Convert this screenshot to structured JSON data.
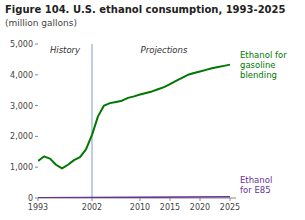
{
  "chart_data": {
    "type": "line",
    "title": "Figure 104. U.S. ethanol consumption, 1993-2025",
    "subtitle": "(million gallons)",
    "annotations": [
      "History",
      "Projections"
    ],
    "divider": 2002,
    "xlim": [
      1993,
      2026
    ],
    "xticks": [
      1993,
      2002,
      2010,
      2015,
      2020,
      2025
    ],
    "ylim": [
      0,
      5000
    ],
    "yticks": [
      0,
      {
        "value": 1000,
        "label": "1,000"
      },
      {
        "value": 2000,
        "label": "2,000"
      },
      {
        "value": 3000,
        "label": "3,000"
      },
      {
        "value": 4000,
        "label": "4,000"
      },
      {
        "value": 5000,
        "label": "5,000"
      }
    ],
    "grid": false,
    "series": [
      {
        "name": "Ethanol for\ngasoline\nblending",
        "color": "#007700",
        "x": [
          1993,
          1994,
          1995,
          1996,
          1997,
          1998,
          1999,
          2000,
          2001,
          2002,
          2003,
          2004,
          2005,
          2006,
          2007,
          2008,
          2009,
          2010,
          2011,
          2012,
          2013,
          2014,
          2015,
          2016,
          2017,
          2018,
          2019,
          2020,
          2021,
          2022,
          2023,
          2024,
          2025
        ],
        "values": [
          1200,
          1350,
          1280,
          1080,
          960,
          1080,
          1230,
          1330,
          1580,
          2050,
          2650,
          3000,
          3080,
          3120,
          3160,
          3250,
          3300,
          3360,
          3410,
          3460,
          3530,
          3600,
          3700,
          3800,
          3900,
          4000,
          4060,
          4110,
          4160,
          4210,
          4250,
          4290,
          4330
        ]
      },
      {
        "name": "Ethanol\nfor E85",
        "color": "#663399",
        "x": [
          1993,
          2025
        ],
        "values": [
          5,
          40
        ]
      }
    ]
  }
}
